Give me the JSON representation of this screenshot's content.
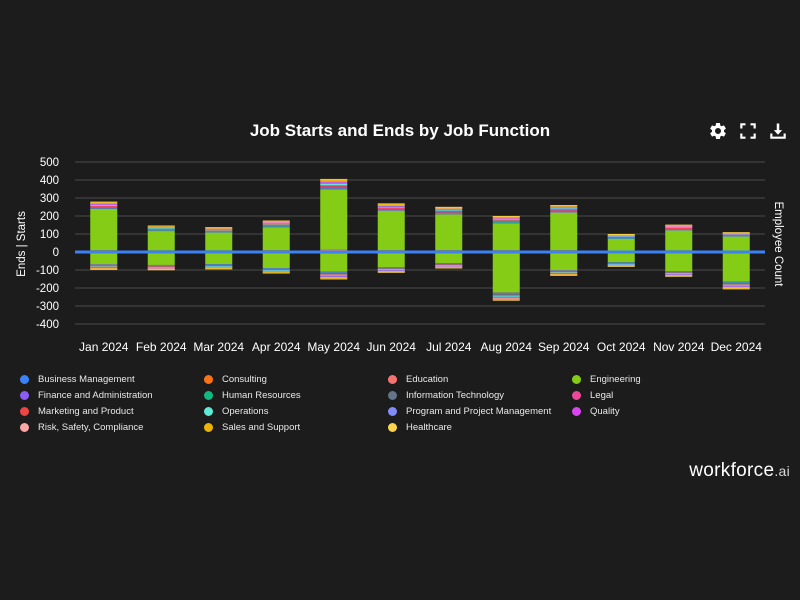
{
  "header": {
    "title": "Job Starts and Ends by Job Function",
    "icons": [
      "gear-icon",
      "fullscreen-icon",
      "download-icon"
    ]
  },
  "brand": {
    "name": "workforce",
    "suffix": ".ai"
  },
  "colors": {
    "background": "#1c1c1c",
    "grid": "#4a4a4a",
    "zero_line": "#3b82f6",
    "functions": {
      "Business Management": "#3b82f6",
      "Consulting": "#f97316",
      "Education": "#f87171",
      "Engineering": "#84cc16",
      "Finance and Administration": "#8b5cf6",
      "Human Resources": "#10b981",
      "Information Technology": "#64748b",
      "Legal": "#ec4899",
      "Marketing and Product": "#ef4444",
      "Operations": "#5eead4",
      "Program and Project Management": "#818cf8",
      "Quality": "#d946ef",
      "Risk, Safety, Compliance": "#fca5a5",
      "Sales and Support": "#eab308",
      "Healthcare": "#fcd34d"
    }
  },
  "legend": [
    "Business Management",
    "Consulting",
    "Education",
    "Engineering",
    "Finance and Administration",
    "Human Resources",
    "Information Technology",
    "Legal",
    "Marketing and Product",
    "Operations",
    "Program and Project Management",
    "Quality",
    "Risk, Safety, Compliance",
    "Sales and Support",
    "Healthcare"
  ],
  "chart_data": {
    "type": "bar",
    "stacked": true,
    "title": "Job Starts and Ends by Job Function",
    "ylabel": "Ends | Starts",
    "y2label": "Employee Count",
    "ylim": [
      -400,
      500
    ],
    "yticks": [
      500,
      400,
      300,
      200,
      100,
      0,
      -100,
      -200,
      -300,
      -400
    ],
    "categories": [
      "Jan 2024",
      "Feb 2024",
      "Mar 2024",
      "Apr 2024",
      "May 2024",
      "Jun 2024",
      "Jul 2024",
      "Aug 2024",
      "Sep 2024",
      "Oct 2024",
      "Nov 2024",
      "Dec 2024"
    ],
    "legend_position": "bottom",
    "series": [
      {
        "name": "Business Management",
        "starts": [
          5,
          5,
          5,
          5,
          5,
          5,
          5,
          5,
          5,
          2,
          5,
          3
        ],
        "ends": [
          -3,
          -3,
          -3,
          -3,
          -4,
          -3,
          -3,
          -5,
          -3,
          -2,
          -3,
          -4
        ]
      },
      {
        "name": "Consulting",
        "starts": [
          2,
          2,
          2,
          2,
          3,
          2,
          2,
          2,
          2,
          1,
          2,
          1
        ],
        "ends": [
          -2,
          -2,
          -2,
          -2,
          -2,
          -2,
          -2,
          -3,
          -2,
          -1,
          -2,
          -3
        ]
      },
      {
        "name": "Education",
        "starts": [
          3,
          2,
          2,
          3,
          4,
          3,
          3,
          3,
          3,
          2,
          2,
          2
        ],
        "ends": [
          -2,
          -2,
          -2,
          -2,
          -3,
          -2,
          -2,
          -3,
          -2,
          -2,
          -2,
          -3
        ]
      },
      {
        "name": "Engineering",
        "starts": [
          230,
          108,
          100,
          128,
          335,
          220,
          200,
          150,
          210,
          70,
          112,
          82
        ],
        "ends": [
          -62,
          -65,
          -60,
          -82,
          -100,
          -78,
          -55,
          -215,
          -95,
          -52,
          -100,
          -155
        ]
      },
      {
        "name": "Finance and Administration",
        "starts": [
          4,
          3,
          3,
          4,
          7,
          4,
          4,
          4,
          4,
          2,
          3,
          2
        ],
        "ends": [
          -3,
          -3,
          -3,
          -3,
          -5,
          -3,
          -3,
          -5,
          -3,
          -2,
          -3,
          -4
        ]
      },
      {
        "name": "Human Resources",
        "starts": [
          3,
          2,
          2,
          3,
          4,
          3,
          3,
          3,
          3,
          2,
          2,
          2
        ],
        "ends": [
          -2,
          -2,
          -2,
          -2,
          -3,
          -2,
          -2,
          -3,
          -2,
          -2,
          -2,
          -3
        ]
      },
      {
        "name": "Information Technology",
        "starts": [
          4,
          3,
          3,
          3,
          5,
          4,
          5,
          4,
          5,
          3,
          4,
          2
        ],
        "ends": [
          -3,
          -3,
          -3,
          -3,
          -4,
          -3,
          -3,
          -4,
          -3,
          -2,
          -3,
          -4
        ]
      },
      {
        "name": "Legal",
        "starts": [
          2,
          1,
          1,
          2,
          2,
          2,
          2,
          2,
          2,
          1,
          1,
          1
        ],
        "ends": [
          -1,
          -1,
          -1,
          -1,
          -2,
          -1,
          -1,
          -2,
          -1,
          -1,
          -1,
          -2
        ]
      },
      {
        "name": "Marketing and Product",
        "starts": [
          3,
          3,
          2,
          3,
          5,
          3,
          3,
          3,
          3,
          2,
          3,
          2
        ],
        "ends": [
          -2,
          -2,
          -2,
          -2,
          -3,
          -2,
          -2,
          -3,
          -2,
          -2,
          -2,
          -3
        ]
      },
      {
        "name": "Operations",
        "starts": [
          5,
          4,
          4,
          5,
          8,
          5,
          5,
          5,
          5,
          3,
          4,
          3
        ],
        "ends": [
          -4,
          -4,
          -4,
          -4,
          -6,
          -4,
          -4,
          -6,
          -4,
          -3,
          -4,
          -6
        ]
      },
      {
        "name": "Program and Project Management",
        "starts": [
          5,
          4,
          4,
          4,
          8,
          5,
          5,
          5,
          5,
          3,
          4,
          2
        ],
        "ends": [
          -4,
          -3,
          -3,
          -4,
          -5,
          -4,
          -3,
          -6,
          -4,
          -3,
          -4,
          -5
        ]
      },
      {
        "name": "Quality",
        "starts": [
          2,
          1,
          1,
          2,
          3,
          2,
          2,
          2,
          2,
          1,
          1,
          1
        ],
        "ends": [
          -1,
          -1,
          -1,
          -1,
          -2,
          -1,
          -1,
          -2,
          -1,
          -1,
          -1,
          -2
        ]
      },
      {
        "name": "Risk, Safety, Compliance",
        "starts": [
          3,
          2,
          2,
          3,
          4,
          3,
          3,
          3,
          3,
          2,
          2,
          2
        ],
        "ends": [
          -2,
          -2,
          -2,
          -2,
          -3,
          -2,
          -2,
          -3,
          -2,
          -2,
          -2,
          -3
        ]
      },
      {
        "name": "Sales and Support",
        "starts": [
          6,
          5,
          5,
          5,
          9,
          6,
          6,
          6,
          6,
          4,
          5,
          3
        ],
        "ends": [
          -4,
          -4,
          -4,
          -4,
          -6,
          -4,
          -4,
          -6,
          -4,
          -3,
          -4,
          -6
        ]
      },
      {
        "name": "Healthcare",
        "starts": [
          3,
          2,
          2,
          3,
          4,
          3,
          3,
          3,
          3,
          2,
          2,
          2
        ],
        "ends": [
          -2,
          -2,
          -2,
          -2,
          -3,
          -2,
          -2,
          -3,
          -2,
          -2,
          -2,
          -3
        ]
      }
    ]
  }
}
